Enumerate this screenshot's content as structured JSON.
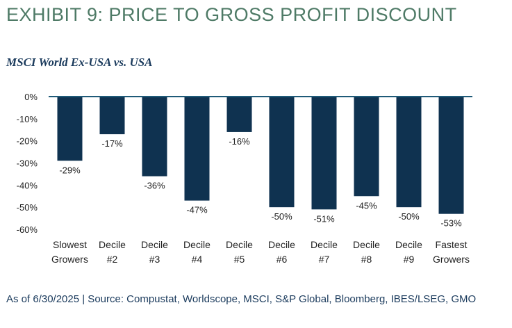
{
  "exhibit_title": "EXHIBIT 9: PRICE TO GROSS PROFIT DISCOUNT",
  "source_note": "As of 6/30/2025 | Source: Compustat, Worldscope, MSCI, S&P Global, Bloomberg, IBES/LSEG, GMO",
  "colors": {
    "bar": "#0f3250",
    "axis": "#1f5a78",
    "title": "#4e7a66"
  },
  "chart_data": {
    "type": "bar",
    "title": "MSCI World Ex-USA vs. USA",
    "categories": [
      [
        "Slowest",
        "Growers"
      ],
      [
        "Decile",
        "#2"
      ],
      [
        "Decile",
        "#3"
      ],
      [
        "Decile",
        "#4"
      ],
      [
        "Decile",
        "#5"
      ],
      [
        "Decile",
        "#6"
      ],
      [
        "Decile",
        "#7"
      ],
      [
        "Decile",
        "#8"
      ],
      [
        "Decile",
        "#9"
      ],
      [
        "Fastest",
        "Growers"
      ]
    ],
    "values": [
      -29,
      -17,
      -36,
      -47,
      -16,
      -50,
      -51,
      -45,
      -50,
      -53
    ],
    "data_labels": [
      "-29%",
      "-17%",
      "-36%",
      "-47%",
      "-16%",
      "-50%",
      "-51%",
      "-45%",
      "-50%",
      "-53%"
    ],
    "yticks": [
      0,
      -10,
      -20,
      -30,
      -40,
      -50,
      -60
    ],
    "ytick_labels": [
      "0%",
      "-10%",
      "-20%",
      "-30%",
      "-40%",
      "-50%",
      "-60%"
    ],
    "ylim": [
      -60,
      0
    ],
    "xlabel": "",
    "ylabel": "",
    "grid": false,
    "legend": "none"
  }
}
